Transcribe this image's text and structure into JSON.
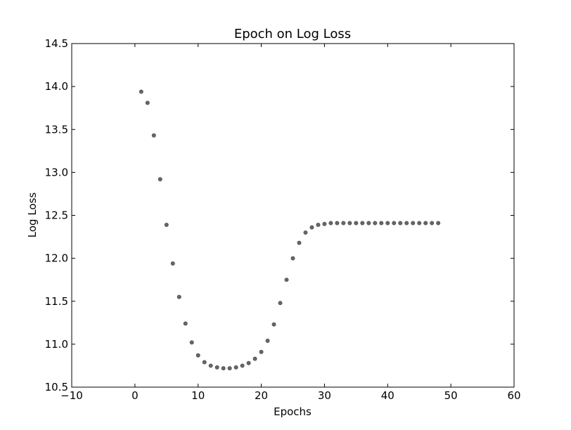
{
  "chart_data": {
    "type": "scatter",
    "title": "Epoch on Log Loss",
    "xlabel": "Epochs",
    "ylabel": "Log Loss",
    "xlim": [
      -10,
      60
    ],
    "ylim": [
      10.5,
      14.5
    ],
    "x_ticks": [
      -10,
      0,
      10,
      20,
      30,
      40,
      50,
      60
    ],
    "y_ticks": [
      10.5,
      11.0,
      11.5,
      12.0,
      12.5,
      13.0,
      13.5,
      14.0,
      14.5
    ],
    "x_tick_labels": [
      "−10",
      "0",
      "10",
      "20",
      "30",
      "40",
      "50",
      "60"
    ],
    "y_tick_labels": [
      "10.5",
      "11.0",
      "11.5",
      "12.0",
      "12.5",
      "13.0",
      "13.5",
      "14.0",
      "14.5"
    ],
    "grid": false,
    "marker_color": "#666666",
    "series": [
      {
        "x": [
          1,
          2,
          3,
          4,
          5,
          6,
          7,
          8,
          9,
          10,
          11,
          12,
          13,
          14,
          15,
          16,
          17,
          18,
          19,
          20,
          21,
          22,
          23,
          24,
          25,
          26,
          27,
          28,
          29,
          30,
          31,
          32,
          33,
          34,
          35,
          36,
          37,
          38,
          39,
          40,
          41,
          42,
          43,
          44,
          45,
          46,
          47,
          48
        ],
        "y": [
          13.94,
          13.81,
          13.43,
          12.92,
          12.39,
          11.94,
          11.55,
          11.24,
          11.02,
          10.87,
          10.79,
          10.75,
          10.73,
          10.72,
          10.72,
          10.73,
          10.75,
          10.78,
          10.83,
          10.91,
          11.04,
          11.23,
          11.48,
          11.75,
          12.0,
          12.18,
          12.3,
          12.36,
          12.39,
          12.4,
          12.41,
          12.41,
          12.41,
          12.41,
          12.41,
          12.41,
          12.41,
          12.41,
          12.41,
          12.41,
          12.41,
          12.41,
          12.41,
          12.41,
          12.41,
          12.41,
          12.41,
          12.41
        ]
      }
    ]
  }
}
